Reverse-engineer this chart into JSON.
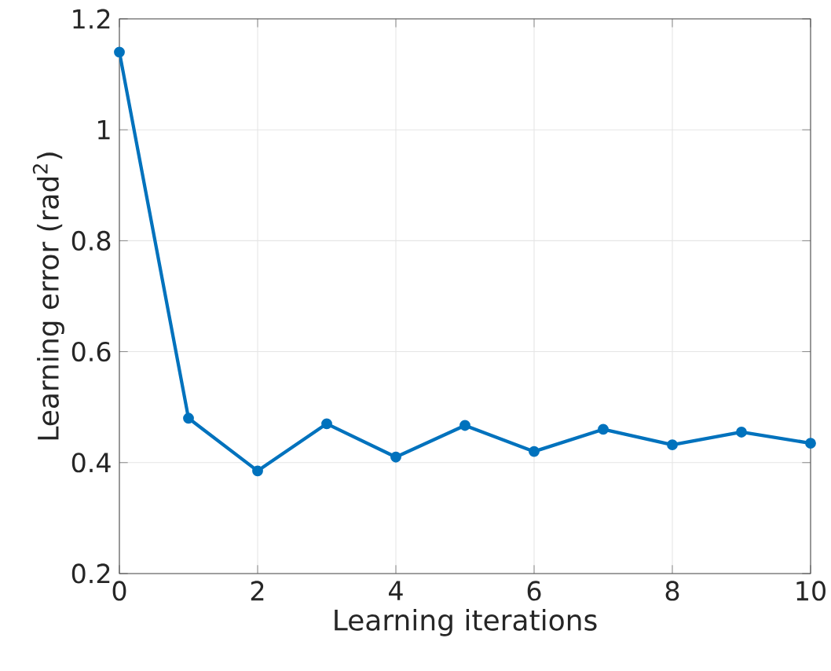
{
  "chart_data": {
    "type": "line",
    "xlabel": "Learning iterations",
    "ylabel": "Learning error (rad$^{2}$)",
    "x": [
      0,
      1,
      2,
      3,
      4,
      5,
      6,
      7,
      8,
      9,
      10
    ],
    "series": [
      {
        "color": "#0072bd",
        "values": [
          1.14,
          0.48,
          0.385,
          0.47,
          0.41,
          0.467,
          0.42,
          0.46,
          0.432,
          0.455,
          0.435
        ]
      }
    ],
    "xlim": [
      0,
      10
    ],
    "ylim": [
      0.2,
      1.2
    ],
    "xticks": [
      0,
      2,
      4,
      6,
      8,
      10
    ],
    "yticks": [
      0.2,
      0.4,
      0.6,
      0.8,
      1,
      1.2
    ],
    "grid": true,
    "marker": "circle",
    "line_style": "solid"
  }
}
